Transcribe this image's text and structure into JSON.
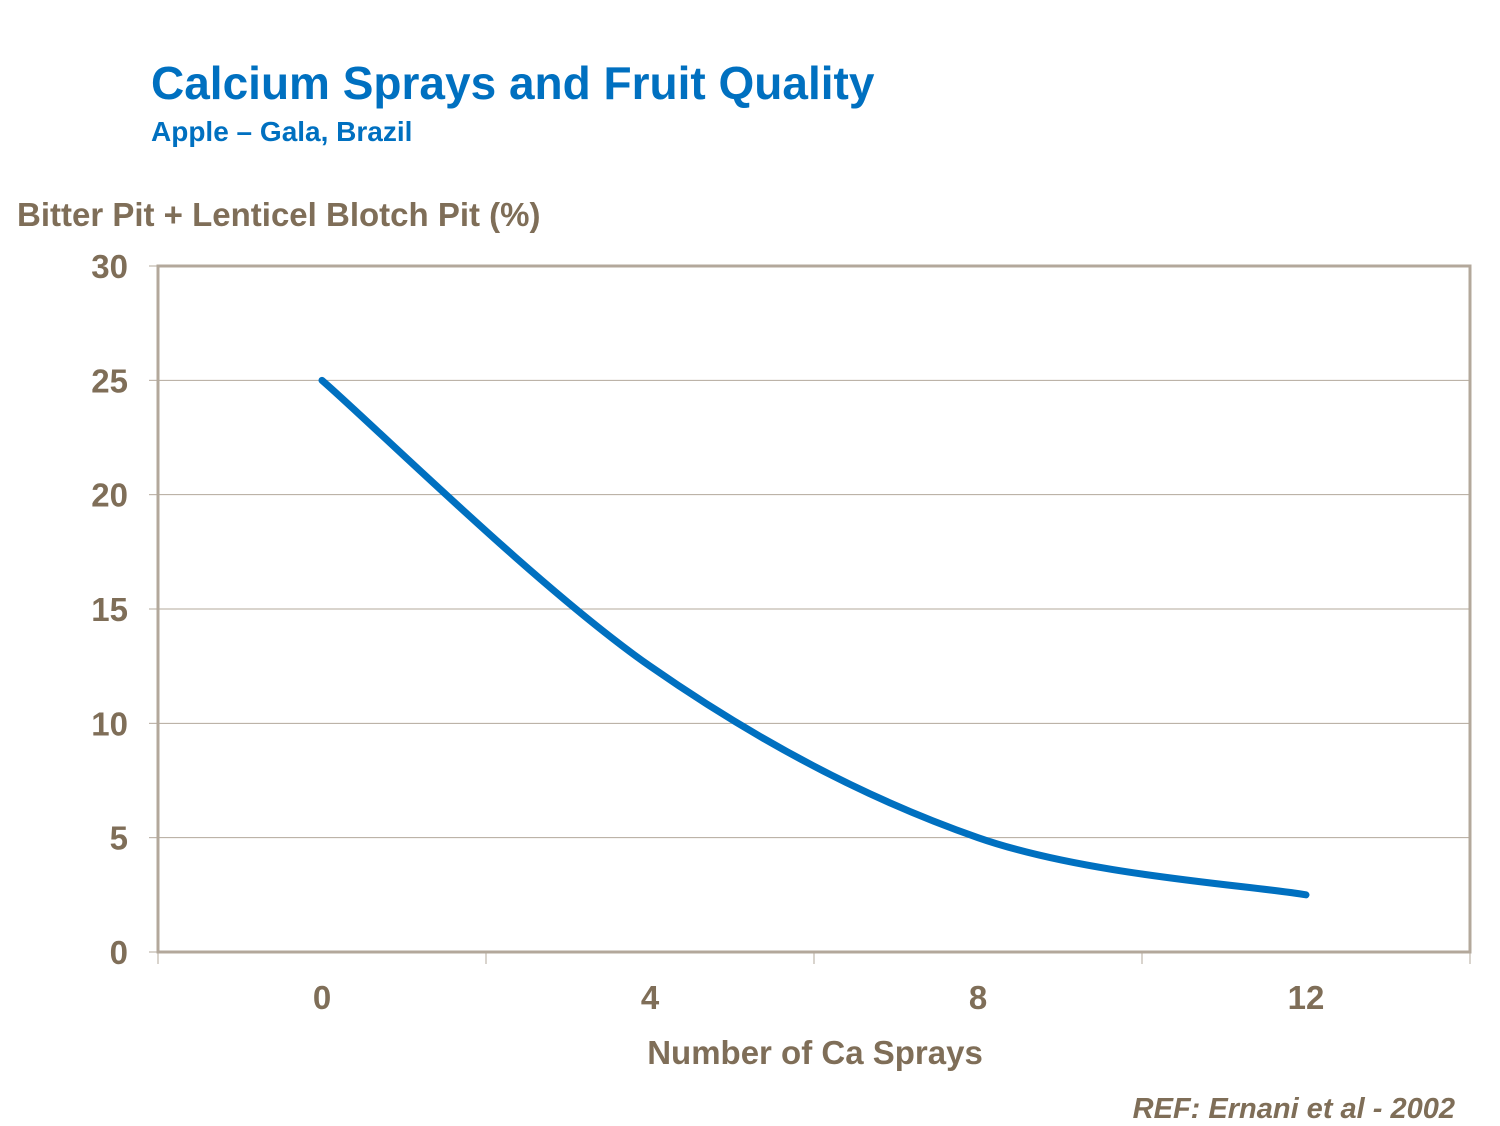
{
  "chart_data": {
    "type": "line",
    "title": "Calcium Sprays and Fruit Quality",
    "subtitle": "Apple – Gala, Brazil",
    "ylabel": "Bitter Pit + Lenticel Blotch Pit (%)",
    "xlabel": "Number of Ca Sprays",
    "x": [
      0,
      4,
      8,
      12
    ],
    "series": [
      {
        "values": [
          25,
          12.5,
          5,
          2.5
        ],
        "color": "#0070C0",
        "smooth": true
      }
    ],
    "xlim": [
      -2,
      14
    ],
    "ylim": [
      0,
      30
    ],
    "xticks": [
      "0",
      "4",
      "8",
      "12"
    ],
    "yticks": [
      "0",
      "5",
      "10",
      "15",
      "20",
      "25",
      "30"
    ],
    "grid": "horizontal",
    "legend": "none",
    "annotation": "REF: Ernani et al - 2002"
  }
}
